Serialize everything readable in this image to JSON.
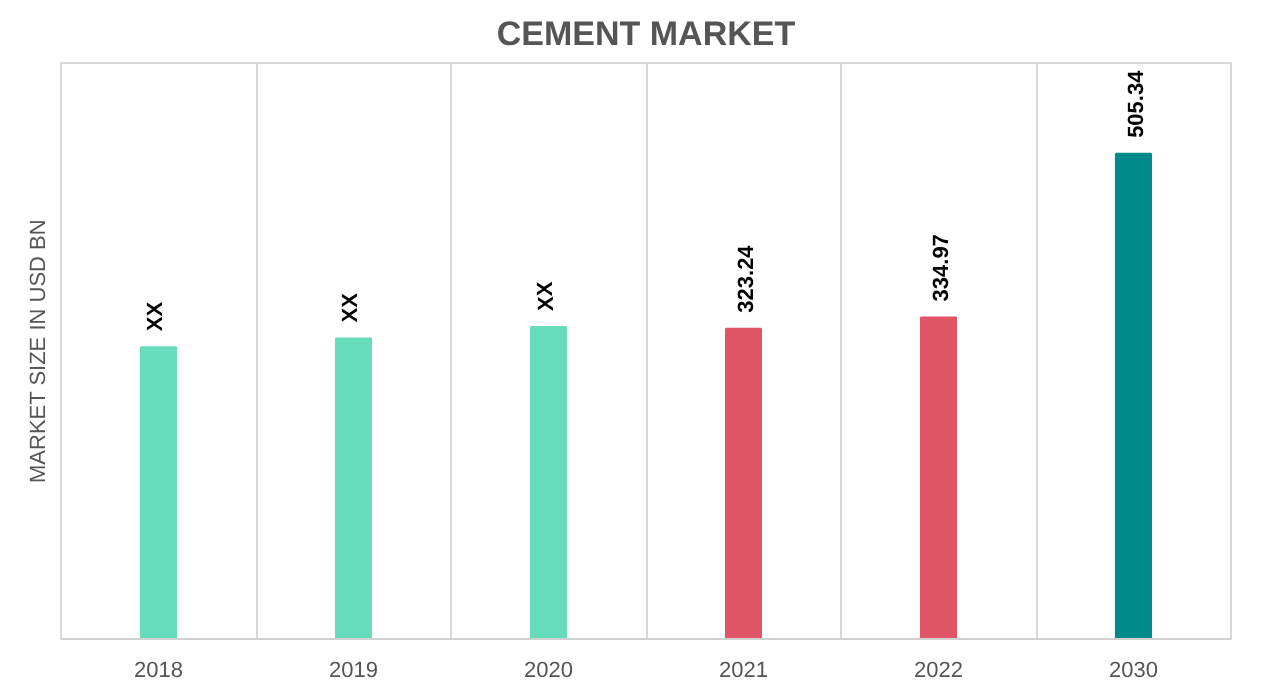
{
  "chart_data": {
    "type": "bar",
    "title": "CEMENT MARKET",
    "ylabel": "MARKET SIZE IN USD BN",
    "categories": [
      "2018",
      "2019",
      "2020",
      "2021",
      "2022",
      "2030"
    ],
    "values": [
      304,
      313,
      325,
      323.24,
      334.97,
      505.34
    ],
    "colors": [
      "#67dcbb",
      "#67dcbb",
      "#67dcbb",
      "#e05565",
      "#e05565",
      "#008b8b"
    ],
    "value_labels": [
      "XX",
      "XX",
      "XX",
      "323.24",
      "334.97",
      "505.34"
    ],
    "ylim": [
      0,
      600
    ],
    "grid": "x"
  }
}
